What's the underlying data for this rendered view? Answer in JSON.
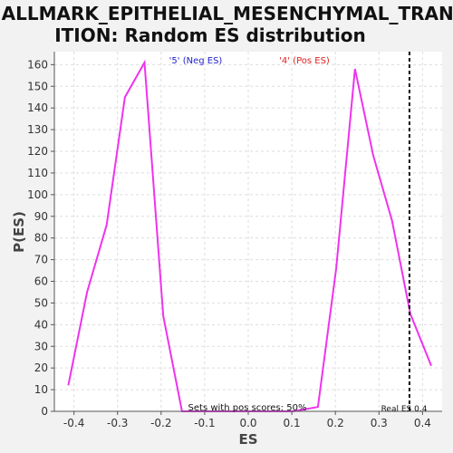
{
  "chart_data": {
    "type": "line",
    "title": [
      "HALLMARK_EPITHELIAL_MESENCHYMAL_TRANS",
      "ITION: Random ES distribution"
    ],
    "xlabel": "ES",
    "ylabel": "P(ES)",
    "xlim": [
      -0.445,
      0.445
    ],
    "ylim": [
      0,
      166
    ],
    "x_ticks": [
      -0.4,
      -0.3,
      -0.2,
      -0.1,
      0.0,
      0.1,
      0.2,
      0.3,
      0.4
    ],
    "x_tick_labels": [
      "-0.4",
      "-0.3",
      "-0.2",
      "-0.1",
      "0.0",
      "0.1",
      "0.2",
      "0.3",
      "0.4"
    ],
    "y_ticks": [
      0,
      10,
      20,
      30,
      40,
      50,
      60,
      70,
      80,
      90,
      100,
      110,
      120,
      130,
      140,
      150,
      160
    ],
    "grid": true,
    "series": [
      {
        "color": "#ee33ee",
        "points": [
          [
            -0.413,
            12
          ],
          [
            -0.37,
            55
          ],
          [
            -0.325,
            86
          ],
          [
            -0.283,
            145
          ],
          [
            -0.238,
            161
          ],
          [
            -0.195,
            44
          ],
          [
            -0.152,
            0
          ],
          [
            -0.11,
            0
          ],
          [
            -0.067,
            0
          ],
          [
            -0.025,
            0
          ],
          [
            0.018,
            0
          ],
          [
            0.06,
            0
          ],
          [
            0.103,
            0
          ],
          [
            0.16,
            2
          ],
          [
            0.202,
            66
          ],
          [
            0.245,
            158
          ],
          [
            0.287,
            118
          ],
          [
            0.33,
            88
          ],
          [
            0.372,
            45
          ],
          [
            0.42,
            21
          ]
        ]
      }
    ],
    "annotations": {
      "neg_label": "'5' (Neg ES)",
      "neg_color": "#2222cc",
      "pos_label": "'4' (Pos ES)",
      "pos_color": "#dd2222",
      "pos_scores": "Sets with pos scores: 50%",
      "real_es_label": "Real ES 0.4",
      "real_es": 0.37
    }
  }
}
